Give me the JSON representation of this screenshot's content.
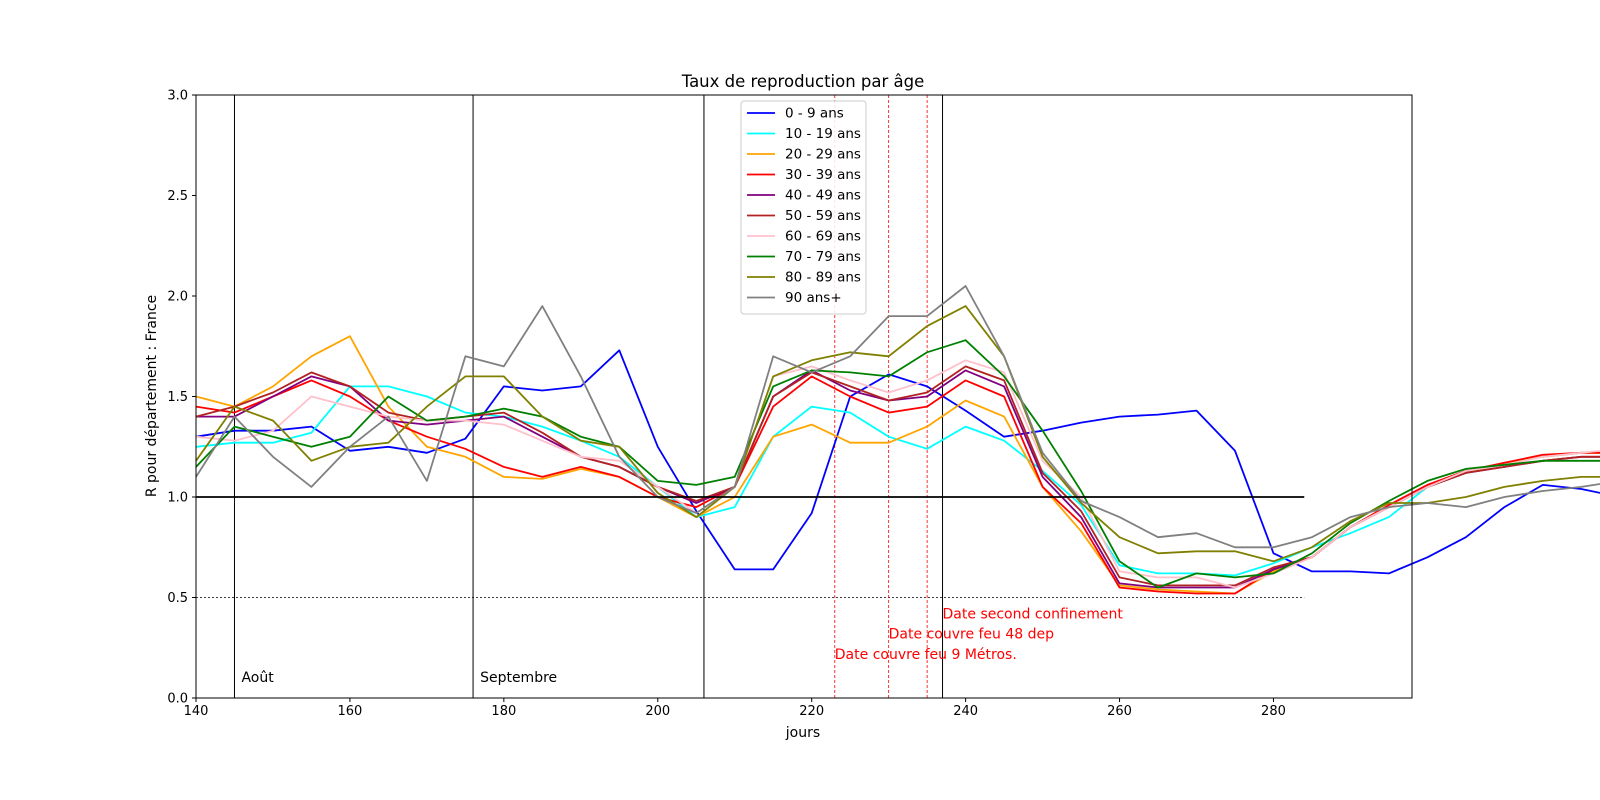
{
  "chart_data": {
    "type": "line",
    "title": "Taux de reproduction par âge",
    "xlabel": "jours",
    "ylabel": "R pour département : France",
    "xlim": [
      140,
      298
    ],
    "ylim": [
      0,
      3.0
    ],
    "xticks": [
      "140",
      "160",
      "180",
      "200",
      "220",
      "240",
      "260",
      "280"
    ],
    "yticks": [
      "0.0",
      "0.5",
      "1.0",
      "1.5",
      "2.0",
      "2.5",
      "3.0"
    ],
    "grid": false,
    "legend_position": "top-center",
    "reference_lines": {
      "horizontal_solid": 1.0,
      "horizontal_dotted": 0.5,
      "hline_xmax": 284
    },
    "month_lines": [
      {
        "x": 145,
        "label": "Août"
      },
      {
        "x": 176,
        "label": "Septembre"
      },
      {
        "x": 206,
        "label": ""
      },
      {
        "x": 237,
        "label": ""
      }
    ],
    "event_lines": [
      {
        "x": 223,
        "label": "Date couvre feu 9 Métros.",
        "label_y": 0.22
      },
      {
        "x": 230,
        "label": "Date couvre feu 48 dep",
        "label_y": 0.32
      },
      {
        "x": 235,
        "label": "",
        "label_y": 0
      },
      {
        "x": 237,
        "label": "Date second confinement",
        "label_y": 0.42
      }
    ],
    "annotation_color": "#ff0000",
    "x_step": 5,
    "x_start": 140,
    "series": [
      {
        "name": " 0 - 9 ans",
        "color": "#0000ff",
        "values": [
          1.3,
          1.33,
          1.33,
          1.35,
          1.23,
          1.25,
          1.22,
          1.29,
          1.55,
          1.53,
          1.55,
          1.73,
          1.25,
          0.93,
          0.64,
          0.64,
          0.92,
          1.5,
          1.61,
          1.55,
          1.43,
          1.3,
          1.33,
          1.37,
          1.4,
          1.41,
          1.43,
          1.23,
          0.72,
          0.63,
          0.63,
          0.62,
          0.7,
          0.8,
          0.95,
          1.06,
          1.04,
          1.0
        ]
      },
      {
        "name": "10 - 19 ans",
        "color": "#00ffff",
        "values": [
          1.25,
          1.27,
          1.27,
          1.32,
          1.55,
          1.55,
          1.5,
          1.42,
          1.4,
          1.35,
          1.28,
          1.2,
          1.05,
          0.9,
          0.95,
          1.3,
          1.45,
          1.42,
          1.3,
          1.24,
          1.35,
          1.28,
          1.13,
          0.96,
          0.66,
          0.62,
          0.62,
          0.61,
          0.67,
          0.75,
          0.82,
          0.9,
          1.05,
          1.12,
          1.17,
          1.2,
          1.22,
          1.22
        ]
      },
      {
        "name": "20 - 29 ans",
        "color": "#ffa500",
        "values": [
          1.5,
          1.45,
          1.55,
          1.7,
          1.8,
          1.45,
          1.25,
          1.2,
          1.1,
          1.09,
          1.14,
          1.1,
          1.0,
          0.9,
          1.0,
          1.3,
          1.36,
          1.27,
          1.27,
          1.35,
          1.48,
          1.4,
          1.05,
          0.83,
          0.56,
          0.54,
          0.53,
          0.52,
          0.63,
          0.7,
          0.85,
          0.95,
          1.05,
          1.12,
          1.17,
          1.2,
          1.22,
          1.22
        ]
      },
      {
        "name": "30 - 39 ans",
        "color": "#ff0000",
        "values": [
          1.45,
          1.42,
          1.5,
          1.58,
          1.5,
          1.38,
          1.3,
          1.24,
          1.15,
          1.1,
          1.15,
          1.1,
          1.0,
          0.95,
          1.05,
          1.45,
          1.6,
          1.5,
          1.42,
          1.45,
          1.58,
          1.5,
          1.05,
          0.87,
          0.55,
          0.53,
          0.52,
          0.52,
          0.64,
          0.7,
          0.85,
          0.96,
          1.06,
          1.13,
          1.17,
          1.21,
          1.22,
          1.22
        ]
      },
      {
        "name": "40 - 49 ans",
        "color": "#800080",
        "values": [
          1.4,
          1.4,
          1.5,
          1.6,
          1.55,
          1.38,
          1.36,
          1.38,
          1.4,
          1.3,
          1.2,
          1.15,
          1.05,
          0.97,
          1.05,
          1.5,
          1.63,
          1.53,
          1.48,
          1.5,
          1.63,
          1.55,
          1.1,
          0.9,
          0.57,
          0.55,
          0.55,
          0.55,
          0.64,
          0.7,
          0.85,
          0.95,
          1.05,
          1.12,
          1.15,
          1.18,
          1.2,
          1.2
        ]
      },
      {
        "name": "50 - 59 ans",
        "color": "#b22222",
        "values": [
          1.4,
          1.45,
          1.52,
          1.62,
          1.55,
          1.42,
          1.38,
          1.4,
          1.42,
          1.32,
          1.2,
          1.15,
          1.05,
          0.98,
          1.05,
          1.5,
          1.62,
          1.55,
          1.48,
          1.52,
          1.65,
          1.58,
          1.12,
          0.93,
          0.6,
          0.56,
          0.56,
          0.56,
          0.65,
          0.7,
          0.85,
          0.95,
          1.05,
          1.12,
          1.15,
          1.18,
          1.2,
          1.2
        ]
      },
      {
        "name": "60 - 69 ans",
        "color": "#ffc0cb",
        "values": [
          1.3,
          1.28,
          1.33,
          1.5,
          1.45,
          1.4,
          1.38,
          1.38,
          1.36,
          1.28,
          1.2,
          1.18,
          1.05,
          0.92,
          1.05,
          1.6,
          1.65,
          1.58,
          1.52,
          1.58,
          1.68,
          1.62,
          1.18,
          1.0,
          0.63,
          0.6,
          0.6,
          0.55,
          0.62,
          0.7,
          0.85,
          0.95,
          1.05,
          1.13,
          1.16,
          1.2,
          1.22,
          1.24
        ]
      },
      {
        "name": "70 - 79 ans",
        "color": "#008000",
        "values": [
          1.15,
          1.35,
          1.3,
          1.25,
          1.3,
          1.5,
          1.38,
          1.4,
          1.44,
          1.4,
          1.3,
          1.25,
          1.08,
          1.06,
          1.1,
          1.55,
          1.63,
          1.62,
          1.6,
          1.72,
          1.78,
          1.6,
          1.33,
          1.03,
          0.68,
          0.55,
          0.62,
          0.6,
          0.62,
          0.72,
          0.87,
          0.98,
          1.08,
          1.14,
          1.16,
          1.18,
          1.18,
          1.18
        ]
      },
      {
        "name": "80 - 89 ans",
        "color": "#808000",
        "values": [
          1.18,
          1.45,
          1.38,
          1.18,
          1.25,
          1.27,
          1.45,
          1.6,
          1.6,
          1.4,
          1.28,
          1.25,
          1.02,
          0.9,
          1.05,
          1.6,
          1.68,
          1.72,
          1.7,
          1.85,
          1.95,
          1.7,
          1.2,
          0.97,
          0.8,
          0.72,
          0.73,
          0.73,
          0.68,
          0.75,
          0.88,
          0.97,
          0.97,
          1.0,
          1.05,
          1.08,
          1.1,
          1.1
        ]
      },
      {
        "name": "90 ans+",
        "color": "#808080",
        "values": [
          1.1,
          1.4,
          1.2,
          1.05,
          1.25,
          1.4,
          1.08,
          1.7,
          1.65,
          1.95,
          1.6,
          1.2,
          1.0,
          0.92,
          1.05,
          1.7,
          1.62,
          1.7,
          1.9,
          1.9,
          2.05,
          1.7,
          1.22,
          0.98,
          0.9,
          0.8,
          0.82,
          0.75,
          0.75,
          0.8,
          0.9,
          0.95,
          0.97,
          0.95,
          1.0,
          1.03,
          1.05,
          1.08
        ]
      }
    ]
  }
}
